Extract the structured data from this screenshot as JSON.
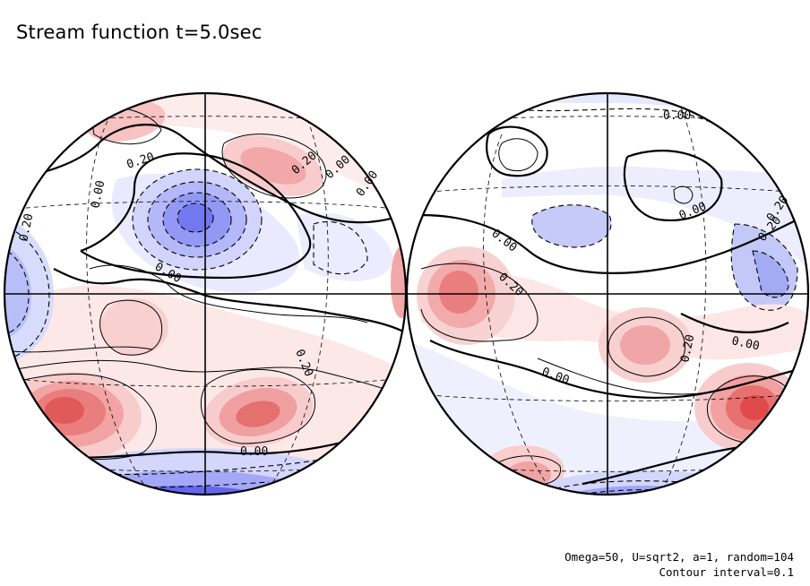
{
  "title": "Stream function t=5.0sec",
  "footer": {
    "params": "Omega=50, U=sqrt2, a=1, random=104",
    "interval": "Contour interval=0.1"
  },
  "colors": {
    "positive": "#e03030",
    "negative": "#2830e8",
    "line": "#000000"
  },
  "hemispheres": [
    {
      "name": "left",
      "labels": [
        "0.20",
        "0.20",
        "0.00",
        "0.00",
        "0.00",
        "0.20",
        "0.00",
        "0.20",
        "0.00"
      ]
    },
    {
      "name": "right",
      "labels": [
        "0.00",
        "0.00",
        "0.20",
        "0.00",
        "0.20",
        "0.20",
        "0.00",
        "0.20",
        "0.00"
      ]
    }
  ]
}
